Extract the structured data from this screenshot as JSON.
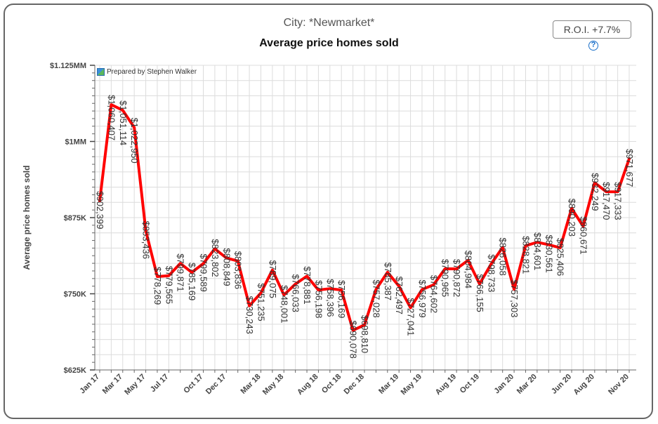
{
  "header": {
    "subtitle": "City: *Newmarket*",
    "title": "Average price homes sold",
    "roi_button": "R.O.I. +7.7%",
    "help_icon": "?",
    "credit": "Prepared by Stephen Walker"
  },
  "chart_data": {
    "type": "line",
    "title": "Average price homes sold",
    "subtitle": "City: *Newmarket*",
    "xlabel": "",
    "ylabel": "Average price homes sold",
    "ylim": [
      625000,
      1125000
    ],
    "y_ticks": [
      {
        "value": 625000,
        "label": "$625K"
      },
      {
        "value": 750000,
        "label": "$750K"
      },
      {
        "value": 875000,
        "label": "$875K"
      },
      {
        "value": 1000000,
        "label": "$1MM"
      },
      {
        "value": 1125000,
        "label": "$1.125MM"
      }
    ],
    "x_ticks": [
      {
        "index": 0,
        "label": "Jan 17"
      },
      {
        "index": 2,
        "label": "Mar 17"
      },
      {
        "index": 4,
        "label": "May 17"
      },
      {
        "index": 6,
        "label": "Jul 17"
      },
      {
        "index": 9,
        "label": "Oct 17"
      },
      {
        "index": 11,
        "label": "Dec 17"
      },
      {
        "index": 14,
        "label": "Mar 18"
      },
      {
        "index": 16,
        "label": "May 18"
      },
      {
        "index": 19,
        "label": "Aug 18"
      },
      {
        "index": 21,
        "label": "Oct 18"
      },
      {
        "index": 23,
        "label": "Dec 18"
      },
      {
        "index": 26,
        "label": "Mar 19"
      },
      {
        "index": 28,
        "label": "May 19"
      },
      {
        "index": 31,
        "label": "Aug 19"
      },
      {
        "index": 33,
        "label": "Oct 19"
      },
      {
        "index": 36,
        "label": "Jan 20"
      },
      {
        "index": 38,
        "label": "Mar 20"
      },
      {
        "index": 41,
        "label": "Jun 20"
      },
      {
        "index": 43,
        "label": "Aug 20"
      },
      {
        "index": 46,
        "label": "Nov 20"
      }
    ],
    "grid": true,
    "series": [
      {
        "color": "#ff0000",
        "values": [
          902399,
          1060407,
          1051114,
          1022950,
          853436,
          778269,
          779565,
          799871,
          785169,
          799589,
          823802,
          808849,
          803836,
          730243,
          751235,
          789075,
          748001,
          766033,
          778881,
          756198,
          758396,
          756169,
          690078,
          698810,
          757028,
          785387,
          762497,
          727041,
          756979,
          764602,
          790965,
          790872,
          804984,
          766155,
          798733,
          826058,
          757303,
          828821,
          834601,
          830561,
          825406,
          890203,
          860671,
          932249,
          917470,
          917333,
          971677
        ],
        "labels": [
          "$902,399",
          "$1,060,407",
          "$1,051,114",
          "$1,022,950",
          "$853,436",
          "$778,269",
          "$779,565",
          "$799,871",
          "$785,169",
          "$799,589",
          "$823,802",
          "$808,849",
          "$803,836",
          "$730,243",
          "$751,235",
          "$789,075",
          "$748,001",
          "$766,033",
          "$778,881",
          "$756,198",
          "$758,396",
          "$756,169",
          "$690,078",
          "$698,810",
          "$757,028",
          "$785,387",
          "$762,497",
          "$727,041",
          "$756,979",
          "$764,602",
          "$790,965",
          "$790,872",
          "$804,984",
          "$766,155",
          "$798,733",
          "$826,058",
          "$757,303",
          "$828,821",
          "$834,601",
          "$830,561",
          "$825,406",
          "$890,203",
          "$860,671",
          "$932,249",
          "$917,470",
          "$917,333",
          "$971,677"
        ]
      }
    ]
  }
}
